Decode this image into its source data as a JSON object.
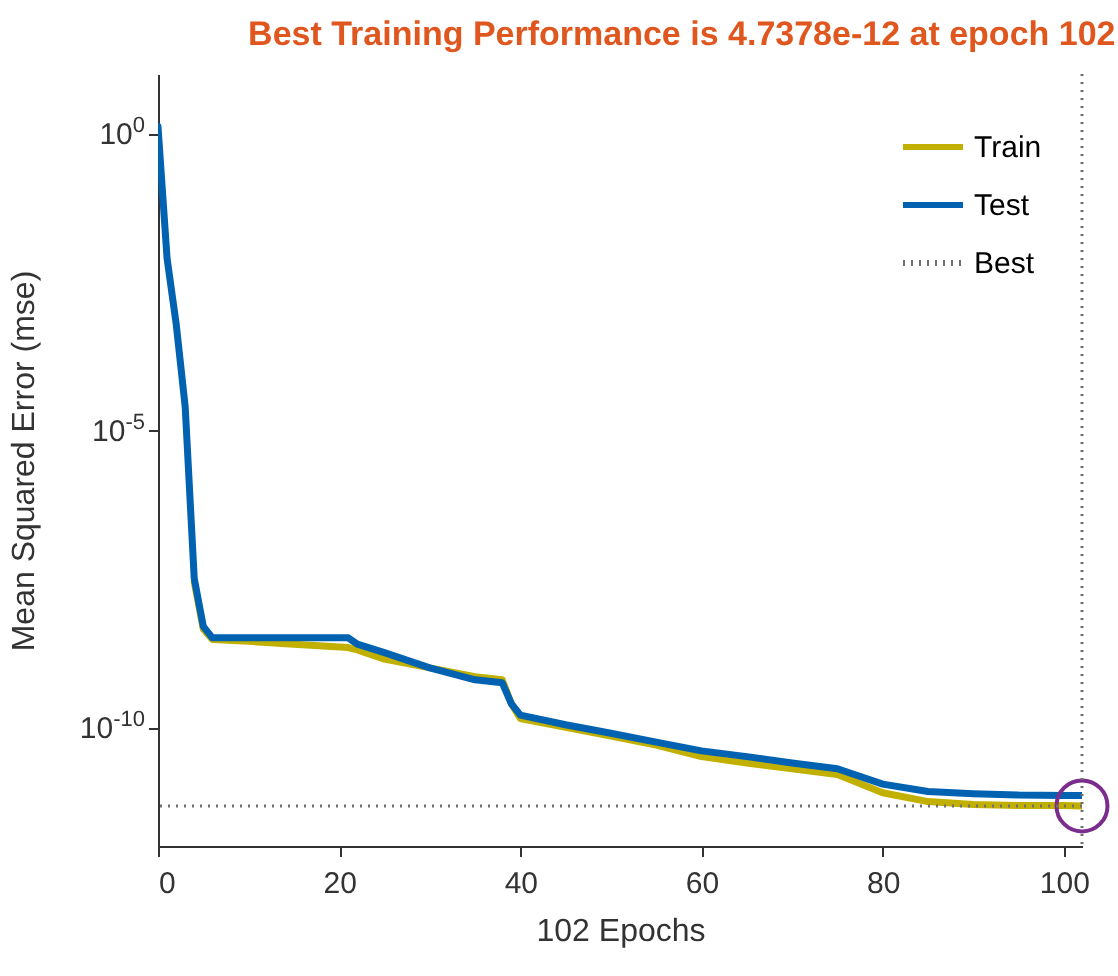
{
  "chart_data": {
    "type": "line",
    "title": "Best Training Performance is 4.7378e-12 at epoch 102",
    "xlabel": "102 Epochs",
    "ylabel": "Mean Squared Error  (mse)",
    "log": "y",
    "xlim": [
      0,
      102
    ],
    "xticks": [
      0,
      20,
      40,
      60,
      80,
      100
    ],
    "ylim": [
      1e-12,
      10
    ],
    "yticks": [
      {
        "value": 1e-10,
        "label": "10$^{-10}$"
      },
      {
        "value": 1e-05,
        "label": "10$^{-5}$"
      },
      {
        "value": 1,
        "label": "10$^{0}$"
      }
    ],
    "legend": "top right",
    "grid": false,
    "line_style": "solid",
    "series": [
      {
        "name": "Train",
        "color": "#c2b000",
        "x": [
          4,
          5,
          6,
          10,
          15,
          21,
          22,
          25,
          30,
          35,
          38,
          39,
          40,
          45,
          50,
          55,
          60,
          65,
          70,
          75,
          80,
          85,
          90,
          95,
          100,
          102
        ],
        "values": [
          2.8e-08,
          4.5e-09,
          3e-09,
          2.8e-09,
          2.5e-09,
          2.2e-09,
          2e-09,
          1.4e-09,
          1e-09,
          7.1e-10,
          6.3e-10,
          2.5e-10,
          1.4e-10,
          1e-10,
          7.1e-11,
          5e-11,
          3.2e-11,
          2.5e-11,
          2e-11,
          1.6e-11,
          7.9e-12,
          5.6e-12,
          5e-12,
          4.8e-12,
          4.8e-12,
          4.7378e-12
        ]
      },
      {
        "name": "Test",
        "color": "#0062b0",
        "x": [
          0,
          1,
          2,
          3,
          4,
          5,
          6,
          10,
          15,
          21,
          22,
          25,
          30,
          35,
          38,
          39,
          40,
          45,
          50,
          55,
          60,
          65,
          70,
          75,
          80,
          85,
          90,
          95,
          100,
          102
        ],
        "values": [
          1.3,
          0.0079,
          0.00063,
          2.5e-05,
          3.2e-08,
          5e-09,
          3.2e-09,
          3.2e-09,
          3.2e-09,
          3.2e-09,
          2.5e-09,
          1.8e-09,
          1e-09,
          6.3e-10,
          5.6e-10,
          2.5e-10,
          1.6e-10,
          1.1e-10,
          7.9e-11,
          5.6e-11,
          4e-11,
          3.2e-11,
          2.5e-11,
          2e-11,
          1.1e-11,
          8.3e-12,
          7.6e-12,
          7.2e-12,
          7.1e-12,
          7.1e-12
        ]
      },
      {
        "type": "scatter",
        "color": "#7b2d8e",
        "marker": "circle",
        "x": [
          102
        ],
        "values": [
          4.7378e-12
        ]
      }
    ],
    "ref_lines": [
      {
        "axis": "y",
        "value": 4.7378e-12,
        "label": "Best",
        "color": "#707070",
        "line_style": "dotted"
      },
      {
        "axis": "x",
        "value": 102,
        "color": "#707070",
        "line_style": "dotted"
      }
    ]
  }
}
